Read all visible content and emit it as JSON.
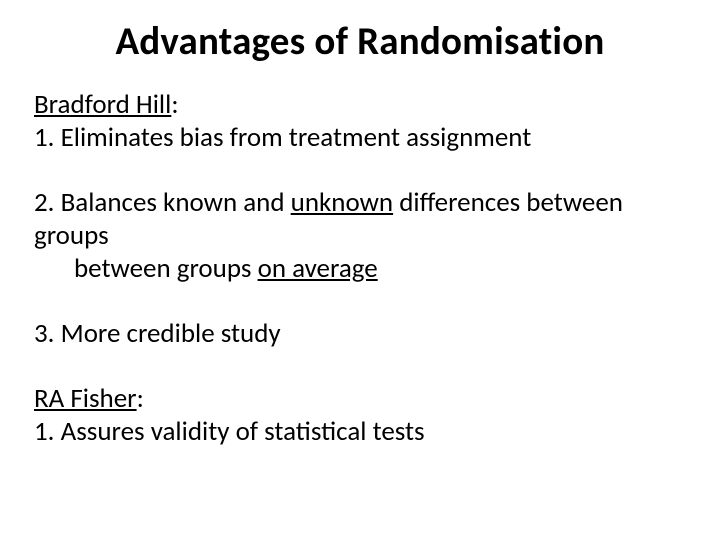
{
  "title": "Advantages of Randomisation",
  "section1": {
    "author": "Bradford Hill",
    "colon": ":",
    "p1": "1. Eliminates bias from treatment assignment",
    "p2a": "2. Balances known and ",
    "p2u": "unknown",
    "p2b": " differences between groups ",
    "p2c": "on average",
    "p3": "3. More credible study"
  },
  "section2": {
    "author": "RA Fisher",
    "colon": ":",
    "p1": "1. Assures validity of statistical tests"
  },
  "style": {
    "background_color": "#ffffff",
    "text_color": "#000000",
    "title_fontsize": 39,
    "body_fontsize": 27,
    "font_family": "Calibri"
  }
}
